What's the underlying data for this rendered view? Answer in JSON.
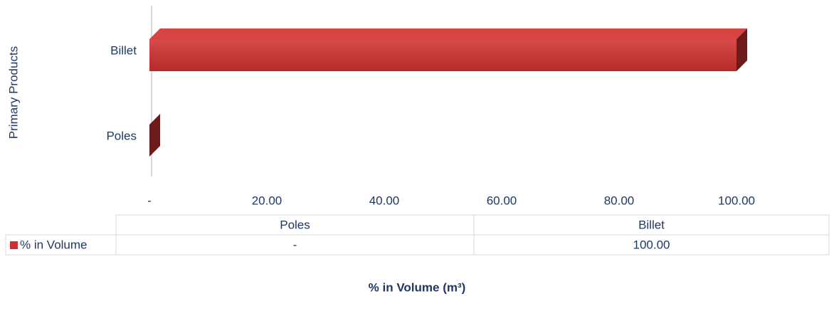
{
  "chart_data": {
    "type": "bar3d",
    "orientation": "horizontal",
    "title": "% in Volume (m³)",
    "y_axis_label": "Primary Products",
    "categories": [
      "Poles",
      "Billet"
    ],
    "series": [
      {
        "name": "% in Volume",
        "color": "#c93232",
        "values": [
          0,
          100
        ],
        "value_labels": [
          "-",
          "100.00"
        ]
      }
    ],
    "xlim": [
      0,
      100
    ],
    "xticks": [
      {
        "value": 0,
        "label": "-"
      },
      {
        "value": 20,
        "label": "20.00"
      },
      {
        "value": 40,
        "label": "40.00"
      },
      {
        "value": 60,
        "label": "60.00"
      },
      {
        "value": 80,
        "label": "80.00"
      },
      {
        "value": 100,
        "label": "100.00"
      }
    ],
    "data_table": true
  }
}
